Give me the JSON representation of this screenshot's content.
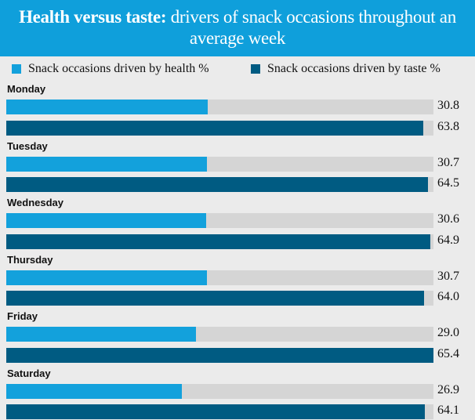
{
  "chart_data": {
    "type": "bar",
    "orientation": "horizontal",
    "title_bold": "Health versus taste:",
    "title_rest": "drivers of snack occasions throughout an average week",
    "categories": [
      "Monday",
      "Tuesday",
      "Wednesday",
      "Thursday",
      "Friday",
      "Saturday"
    ],
    "series": [
      {
        "name": "Snack occasions driven by health %",
        "color": "#13a1dc",
        "values": [
          30.8,
          30.7,
          30.6,
          30.7,
          29.0,
          26.9
        ],
        "labels": [
          "30.8",
          "30.7",
          "30.6",
          "30.7",
          "29.0",
          "26.9"
        ]
      },
      {
        "name": "Snack occasions driven by taste %",
        "color": "#005b82",
        "values": [
          63.8,
          64.5,
          64.9,
          64.0,
          65.4,
          64.1
        ],
        "labels": [
          "63.8",
          "64.5",
          "64.9",
          "64.0",
          "65.4",
          "64.1"
        ]
      }
    ],
    "xlim": [
      0,
      65.4
    ],
    "legend": "top",
    "grid": false,
    "track_color": "#d5d5d5",
    "header_color": "#0f9fdb"
  }
}
